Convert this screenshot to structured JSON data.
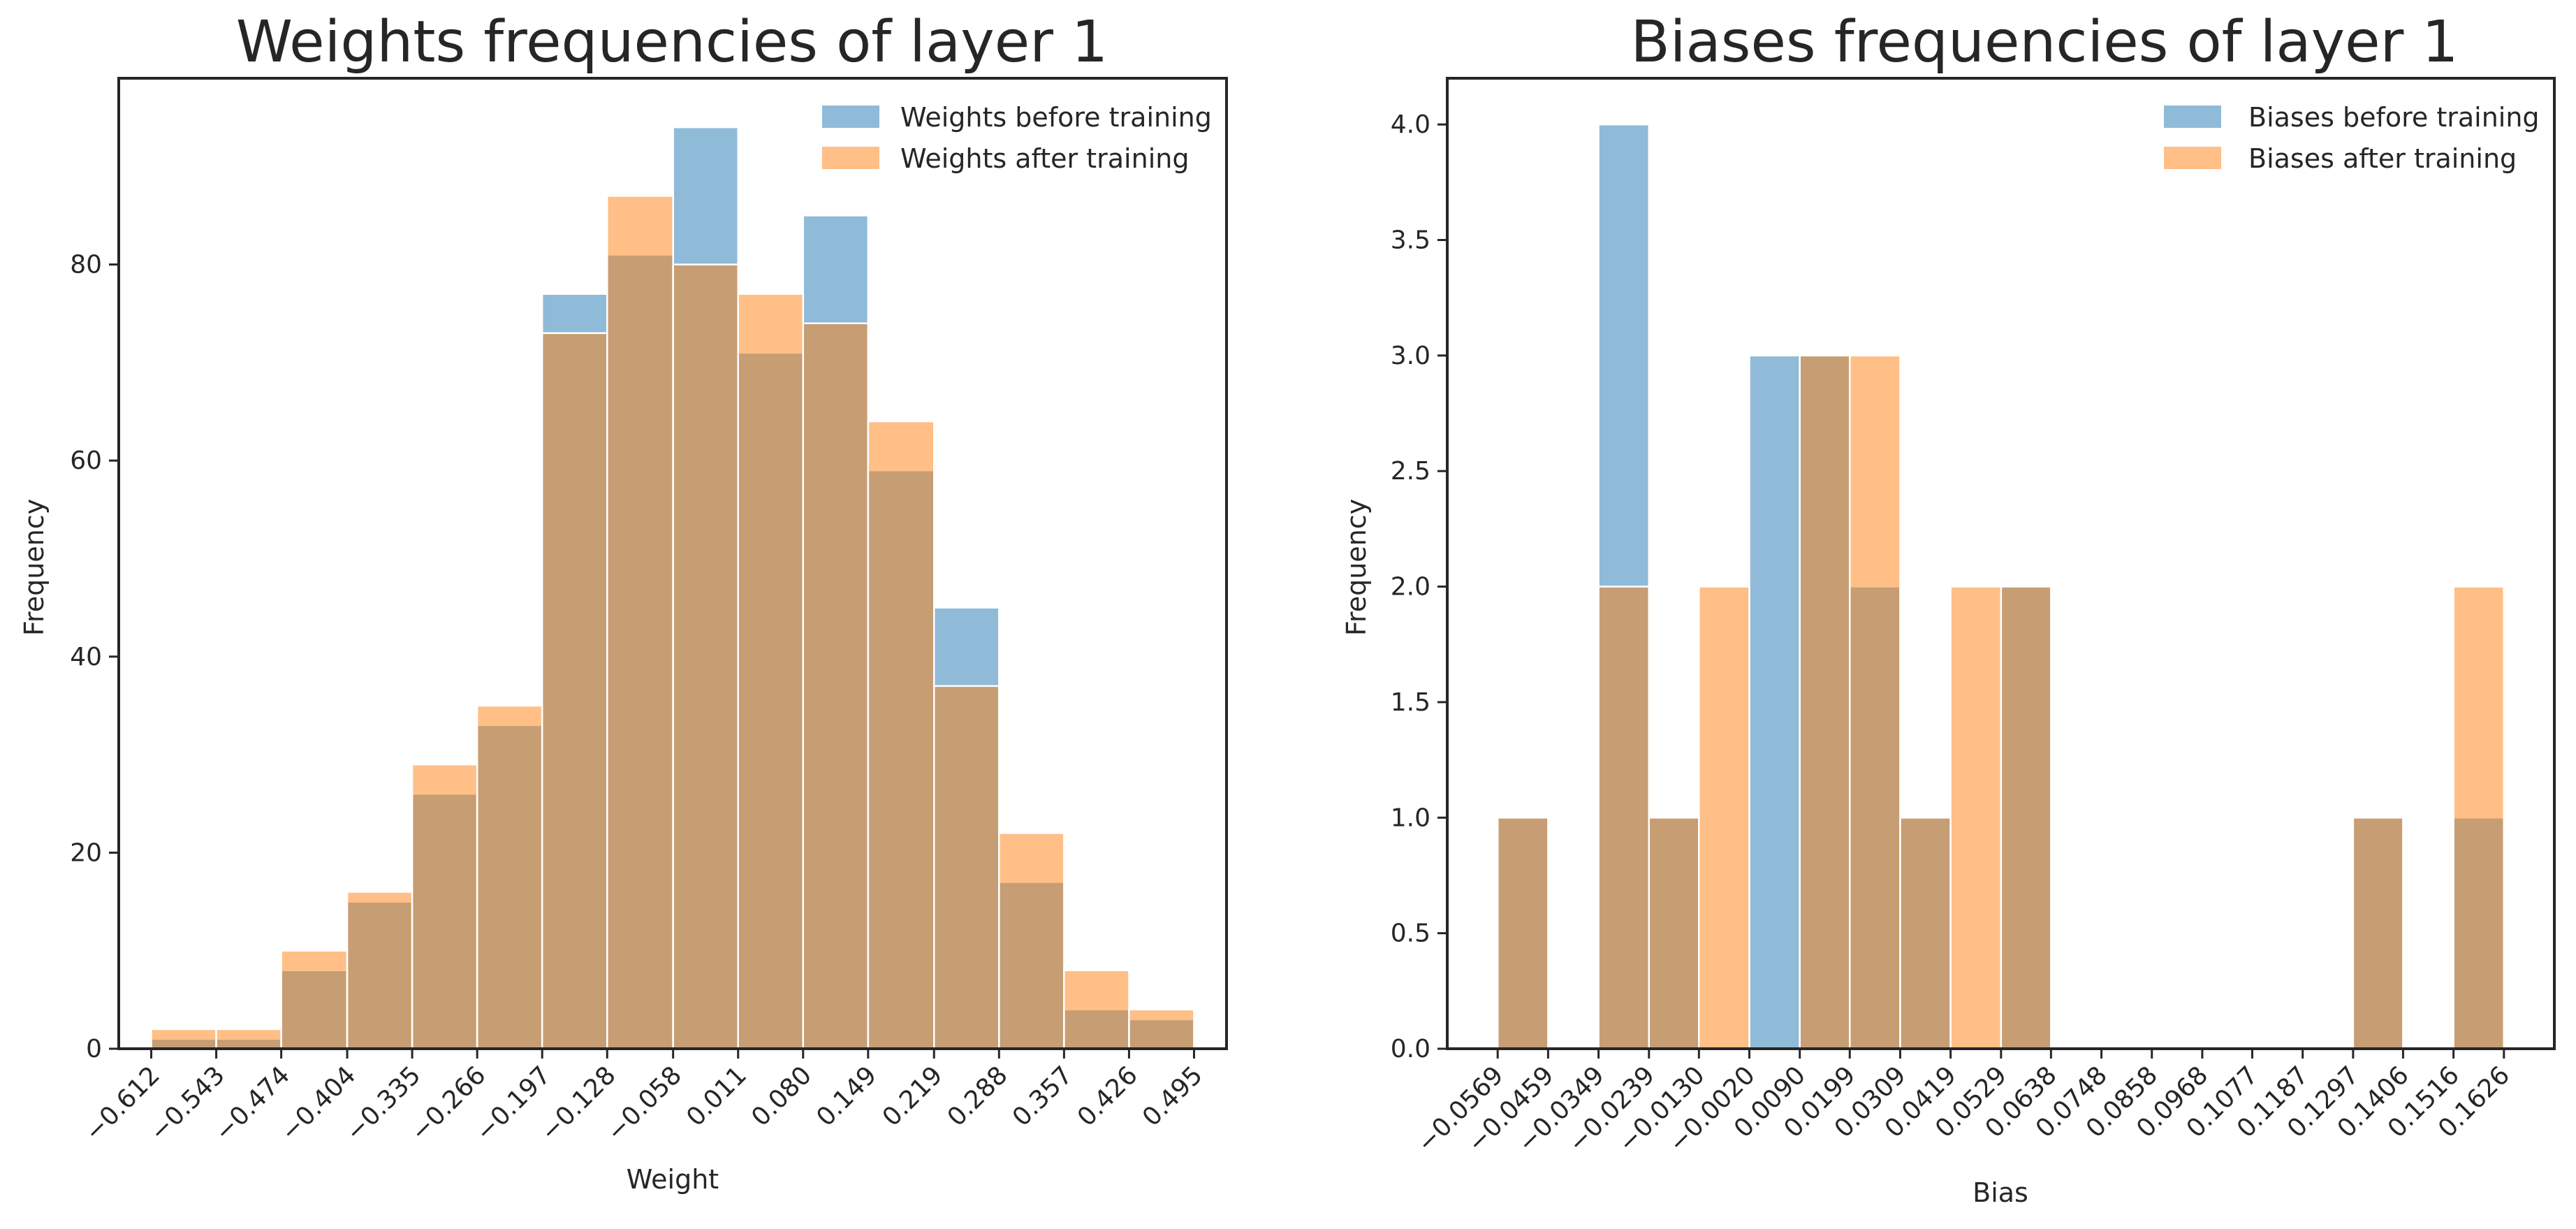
{
  "colors": {
    "before": "#1f77b4",
    "after": "#ff7f0e",
    "overlap_before_opacity": 0.5,
    "overlap_after_opacity": 0.5,
    "bar_edge": "#ffffff",
    "axis": "#262626"
  },
  "chart_data": [
    {
      "type": "bar",
      "title": "Weights frequencies of layer 1",
      "xlabel": "Weight",
      "ylabel": "Frequency",
      "ylim": [
        0,
        99
      ],
      "yticks": [
        0,
        20,
        40,
        60,
        80
      ],
      "ytick_labels": [
        "0",
        "20",
        "40",
        "60",
        "80"
      ],
      "xlim": [
        -0.6465,
        0.5295
      ],
      "xticks": [
        -0.612,
        -0.543,
        -0.474,
        -0.404,
        -0.335,
        -0.266,
        -0.197,
        -0.128,
        -0.058,
        0.011,
        0.08,
        0.149,
        0.219,
        0.288,
        0.357,
        0.426,
        0.495
      ],
      "xtick_labels": [
        "−0.612",
        "−0.543",
        "−0.474",
        "−0.404",
        "−0.335",
        "−0.266",
        "−0.197",
        "−0.128",
        "−0.058",
        "0.011",
        "0.080",
        "0.149",
        "0.219",
        "0.288",
        "0.357",
        "0.426",
        "0.495"
      ],
      "bin_edges": [
        -0.612,
        -0.543,
        -0.474,
        -0.404,
        -0.335,
        -0.266,
        -0.197,
        -0.128,
        -0.058,
        0.011,
        0.08,
        0.149,
        0.219,
        0.288,
        0.357,
        0.426,
        0.495
      ],
      "legend_position": "top-right",
      "series": [
        {
          "name": "Weights before training",
          "key": "before",
          "values": [
            1,
            1,
            8,
            15,
            26,
            33,
            77,
            81,
            94,
            71,
            85,
            59,
            45,
            17,
            4,
            3
          ]
        },
        {
          "name": "Weights after training",
          "key": "after",
          "values": [
            2,
            2,
            10,
            16,
            29,
            35,
            73,
            87,
            80,
            77,
            74,
            64,
            37,
            22,
            8,
            4
          ]
        }
      ]
    },
    {
      "type": "bar",
      "title": "Biases frequencies of layer 1",
      "xlabel": "Bias",
      "ylabel": "Frequency",
      "ylim": [
        0,
        4.2
      ],
      "yticks": [
        0,
        0.5,
        1,
        1.5,
        2,
        2.5,
        3,
        3.5,
        4
      ],
      "ytick_labels": [
        "0.0",
        "0.5",
        "1.0",
        "1.5",
        "2.0",
        "2.5",
        "3.0",
        "3.5",
        "4.0"
      ],
      "xlim": [
        -0.0679,
        0.1736
      ],
      "xticks": [
        -0.0569,
        -0.0459,
        -0.0349,
        -0.0239,
        -0.013,
        -0.002,
        0.009,
        0.0199,
        0.0309,
        0.0419,
        0.0529,
        0.0638,
        0.0748,
        0.0858,
        0.0968,
        0.1077,
        0.1187,
        0.1297,
        0.1406,
        0.1516,
        0.1626
      ],
      "xtick_labels": [
        "−0.0569",
        "−0.0459",
        "−0.0349",
        "−0.0239",
        "−0.0130",
        "−0.0020",
        "0.0090",
        "0.0199",
        "0.0309",
        "0.0419",
        "0.0529",
        "0.0638",
        "0.0748",
        "0.0858",
        "0.0968",
        "0.1077",
        "0.1187",
        "0.1297",
        "0.1406",
        "0.1516",
        "0.1626"
      ],
      "bin_edges": [
        -0.0569,
        -0.0459,
        -0.0349,
        -0.0239,
        -0.013,
        -0.002,
        0.009,
        0.0199,
        0.0309,
        0.0419,
        0.0529,
        0.0638,
        0.0748,
        0.0858,
        0.0968,
        0.1077,
        0.1187,
        0.1297,
        0.1406,
        0.1516,
        0.1626
      ],
      "bars": [
        {
          "x0": -0.0569,
          "x1": -0.0459,
          "before": 1,
          "after": 1
        },
        {
          "x0": -0.0349,
          "x1": -0.0239,
          "before": 4,
          "after": 2
        },
        {
          "x0": -0.0239,
          "x1": -0.013,
          "before": 1,
          "after": 1
        },
        {
          "x0": -0.013,
          "x1": -0.002,
          "before": 0,
          "after": 2
        },
        {
          "x0": -0.002,
          "x1": 0.009,
          "before": 3,
          "after": 0
        },
        {
          "x0": 0.009,
          "x1": 0.0199,
          "before": 3,
          "after": 3
        },
        {
          "x0": 0.0199,
          "x1": 0.0309,
          "before": 2,
          "after": 3
        },
        {
          "x0": 0.0309,
          "x1": 0.0419,
          "before": 1,
          "after": 1
        },
        {
          "x0": 0.0419,
          "x1": 0.0529,
          "before": 0,
          "after": 2
        },
        {
          "x0": 0.0529,
          "x1": 0.0638,
          "before": 2,
          "after": 2
        },
        {
          "x0": 0.1297,
          "x1": 0.1406,
          "before": 1,
          "after": 1
        },
        {
          "x0": 0.1516,
          "x1": 0.1626,
          "before": 1,
          "after": 2
        }
      ],
      "legend_position": "top-right",
      "series": [
        {
          "name": "Biases before training",
          "key": "before"
        },
        {
          "name": "Biases after training",
          "key": "after"
        }
      ]
    }
  ]
}
